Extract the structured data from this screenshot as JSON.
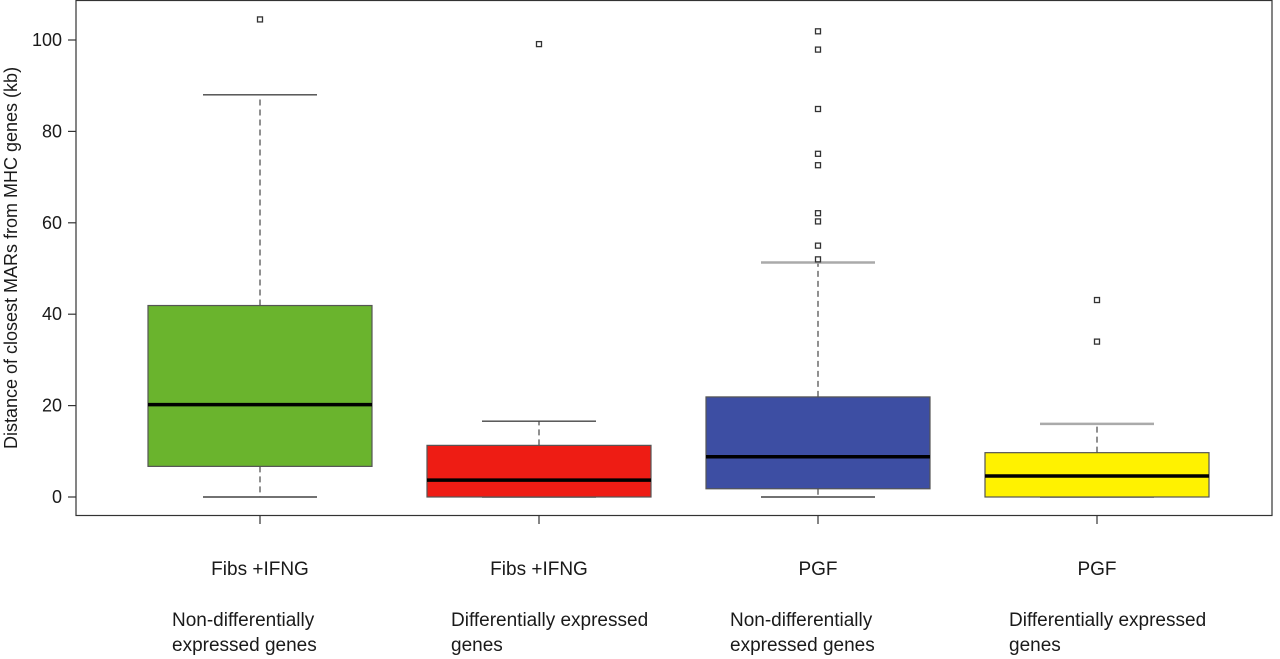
{
  "chart_data": {
    "type": "boxplot",
    "ylabel": "Distance of closest MARs from MHC genes (kb)",
    "ylim": [
      -4,
      108
    ],
    "yticks": [
      0,
      20,
      40,
      60,
      80,
      100
    ],
    "grid": false,
    "categories": [
      {
        "line1": "Fibs +IFNG",
        "line2": [
          "Non-differentially",
          "expressed genes"
        ]
      },
      {
        "line1": "Fibs +IFNG",
        "line2": [
          "Differentially expressed",
          "genes"
        ]
      },
      {
        "line1": "PGF",
        "line2": [
          "Non-differentially",
          "expressed genes"
        ]
      },
      {
        "line1": "PGF",
        "line2": [
          "Differentially expressed",
          "genes"
        ]
      }
    ],
    "boxes": [
      {
        "color": "#6ab42d",
        "whisker_low": 0,
        "q1": 6.7,
        "median": 20.2,
        "q3": 41.9,
        "whisker_high": 88.0,
        "outliers": [
          104.5
        ]
      },
      {
        "color": "#ee1c14",
        "whisker_low": 0,
        "q1": 0,
        "median": 3.7,
        "q3": 11.3,
        "whisker_high": 16.6,
        "outliers": [
          99.1
        ]
      },
      {
        "color": "#3d4ea3",
        "whisker_low": 0,
        "q1": 1.8,
        "median": 8.8,
        "q3": 21.9,
        "whisker_high": 51.3,
        "outliers": [
          52.0,
          55.0,
          60.3,
          62.1,
          72.6,
          75.1,
          84.9,
          97.9,
          101.9
        ]
      },
      {
        "color": "#fff200",
        "whisker_low": 0,
        "q1": 0,
        "median": 4.6,
        "q3": 9.7,
        "whisker_high": 16.0,
        "outliers": [
          34.0,
          43.1
        ]
      }
    ]
  }
}
